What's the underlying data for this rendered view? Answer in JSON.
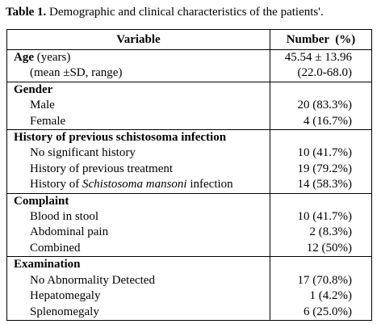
{
  "caption": {
    "label": "Table 1.",
    "text": " Demographic and clinical characteristics of the patients'."
  },
  "table": {
    "headers": {
      "variable": "Variable",
      "number": "Number  (%)"
    },
    "age": {
      "label": "Age",
      "unit": " (years)",
      "value": "45.54 ± 13.96",
      "sub_label": "(mean ±SD, range)",
      "sub_value": "(22.0-68.0)"
    },
    "gender": {
      "label": "Gender",
      "rows": [
        {
          "label": "Male",
          "value": "20 (83.3%)"
        },
        {
          "label": "Female",
          "value": "4 (16.7%)"
        }
      ]
    },
    "history": {
      "label": "History of previous schistosoma infection",
      "rows": [
        {
          "label": "No significant history",
          "value": "10 (41.7%)"
        },
        {
          "label": "History of previous treatment",
          "value": "19 (79.2%)"
        }
      ],
      "mansoni_prefix": "History of ",
      "mansoni_italic": "Schistosoma mansoni",
      "mansoni_suffix": " infection",
      "mansoni_value": "14 (58.3%)"
    },
    "complaint": {
      "label": "Complaint",
      "rows": [
        {
          "label": "Blood in stool",
          "value": "10 (41.7%)"
        },
        {
          "label": "Abdominal pain",
          "value": "2 (8.3%)"
        },
        {
          "label": "Combined",
          "value": "12 (50%)"
        }
      ]
    },
    "examination": {
      "label": "Examination",
      "rows": [
        {
          "label": "No Abnormality Detected",
          "value": "17 (70.8%)"
        },
        {
          "label": "Hepatomegaly",
          "value": "1 (4.2%)"
        },
        {
          "label": "Splenomegaly",
          "value": "6 (25.0%)"
        }
      ]
    }
  }
}
